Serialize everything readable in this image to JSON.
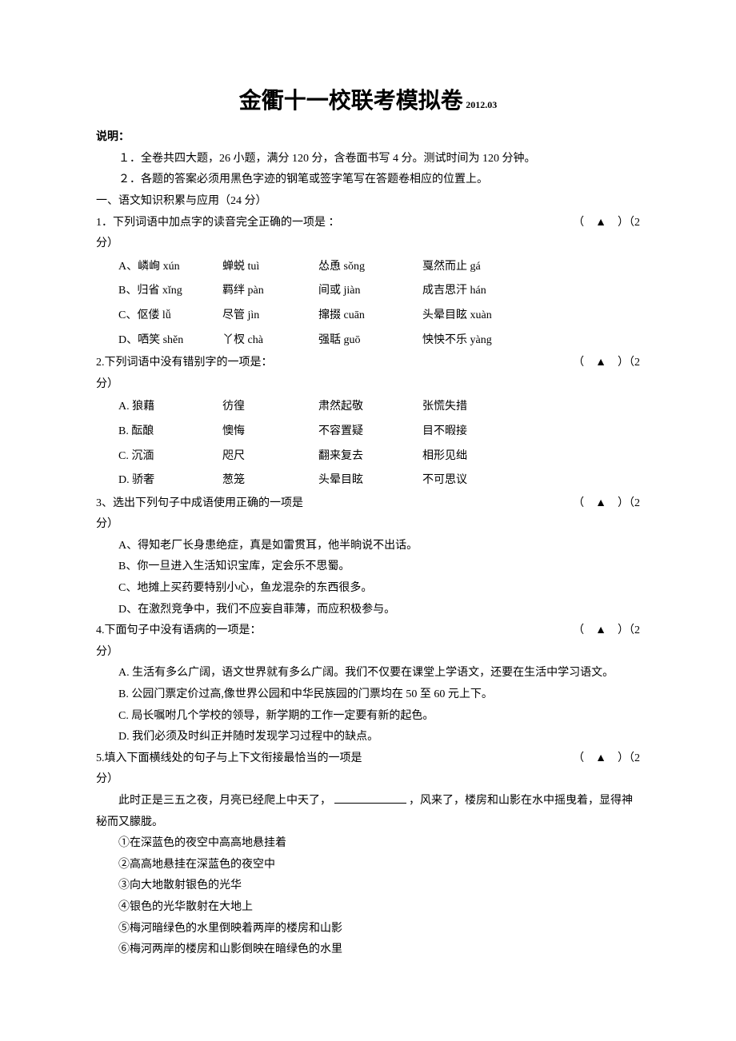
{
  "title": "金衢十一校联考模拟卷",
  "date_suffix": "2012.03",
  "shuoming_label": "说明：",
  "shuoming_lines": [
    "１．全卷共四大题，26 小题，满分 120 分，含卷面书写 4 分。测试时间为 120 分钟。",
    "２．各题的答案必须用黑色字迹的钢笔或签字笔写在答题卷相应的位置上。"
  ],
  "section1_title": "一、语文知识积累与应用（24 分）",
  "marker_text": "（　▲　）（2",
  "fen_close": "分）",
  "q1": {
    "stem": "1．下列词语中加点字的读音完全正确的一项是 ：",
    "opts": [
      [
        "A、嶙峋 xún",
        "蝉蜕 tuì",
        "怂恿 sǒng",
        "戛然而止 gá"
      ],
      [
        "B、归省 xǐng",
        "羁绊 pàn",
        "间或 jiàn",
        "成吉思汗 hán"
      ],
      [
        "C、伛偻 lǚ",
        "尽管 jìn",
        "撺掇 cuān",
        "头晕目眩 xuàn"
      ],
      [
        "D、哂笑 shěn",
        "丫杈 chà",
        "强聒 guō",
        "怏怏不乐 yàng"
      ]
    ]
  },
  "q2": {
    "stem": "2.下列词语中没有错别字的一项是：",
    "opts": [
      [
        "A. 狼藉",
        "彷徨",
        "肃然起敬",
        "张慌失措"
      ],
      [
        "B. 酝酿",
        "懊悔",
        "不容置疑",
        "目不暇接"
      ],
      [
        "C. 沉湎",
        "咫尺",
        "翻来复去",
        "相形见绌"
      ],
      [
        "D. 骄奢",
        "葱笼",
        "头晕目眩",
        "不可思议"
      ]
    ]
  },
  "q3": {
    "stem": "3、选出下列句子中成语使用正确的一项是",
    "opts": [
      "A、得知老厂长身患绝症，真是如雷贯耳，他半晌说不出话。",
      "B、你一旦进入生活知识宝库，定会乐不思蜀。",
      "C、地摊上买药要特别小心，鱼龙混杂的东西很多。",
      "D、在激烈竞争中，我们不应妄自菲薄，而应积极参与。"
    ]
  },
  "q4": {
    "stem": "4.下面句子中没有语病的一项是：",
    "opts": [
      "A. 生活有多么广阔，语文世界就有多么广阔。我们不仅要在课堂上学语文，还要在生活中学习语文。",
      "B. 公园门票定价过高,像世界公园和中华民族园的门票均在 50 至 60 元上下。",
      "C. 局长嘱咐几个学校的领导，新学期的工作一定要有新的起色。",
      "D. 我们必须及时纠正并随时发现学习过程中的缺点。"
    ]
  },
  "q5": {
    "stem": "5.填入下面横线处的句子与上下文衔接最恰当的一项是",
    "passage_before": "此时正是三五之夜，月亮已经爬上中天了，",
    "passage_after": "，风来了，楼房和山影在水中摇曳着，显得神秘而又朦胧。",
    "opts": [
      "①在深蓝色的夜空中高高地悬挂着",
      "②高高地悬挂在深蓝色的夜空中",
      "③向大地散射银色的光华",
      "④银色的光华散射在大地上",
      "⑤梅河暗绿色的水里倒映着两岸的楼房和山影",
      "⑥梅河两岸的楼房和山影倒映在暗绿色的水里"
    ]
  }
}
